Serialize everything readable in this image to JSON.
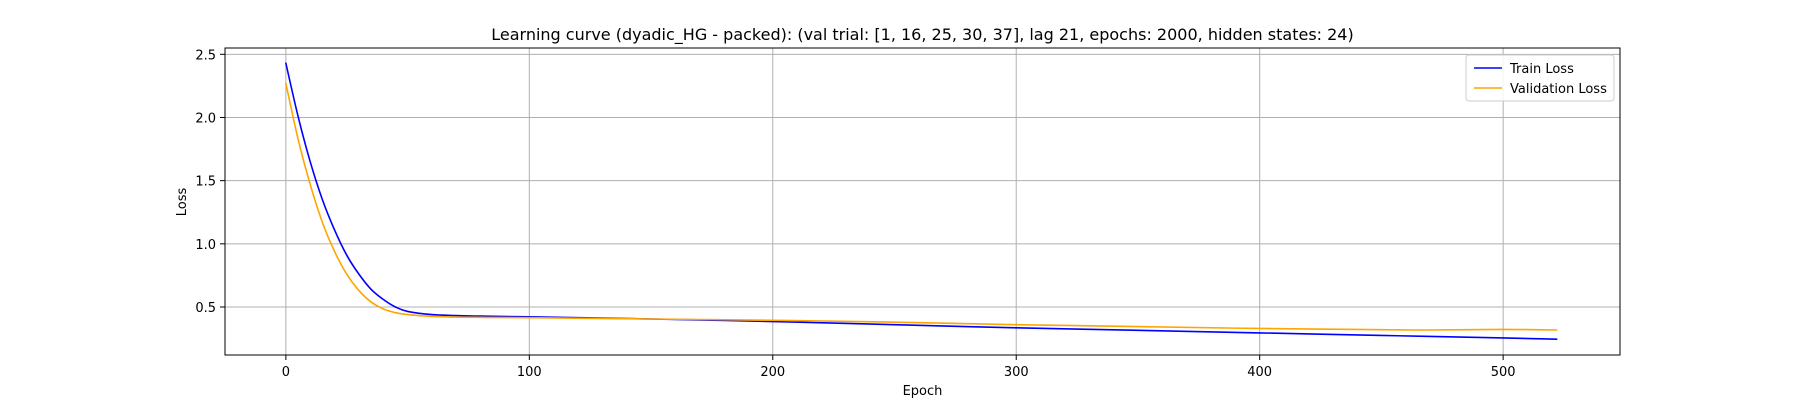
{
  "chart_data": {
    "type": "line",
    "title": "Learning curve (dyadic_HG - packed): (val trial: [1, 16, 25, 30, 37], lag 21, epochs: 2000, hidden states: 24)",
    "xlabel": "Epoch",
    "ylabel": "Loss",
    "xlim": [
      -25,
      548
    ],
    "ylim": [
      0.12,
      2.55
    ],
    "xticks": [
      0,
      100,
      200,
      300,
      400,
      500
    ],
    "yticks": [
      0.5,
      1.0,
      1.5,
      2.0,
      2.5
    ],
    "xtick_labels": [
      "0",
      "100",
      "200",
      "300",
      "400",
      "500"
    ],
    "ytick_labels": [
      "0.5",
      "1.0",
      "1.5",
      "2.0",
      "2.5"
    ],
    "grid": true,
    "legend_position": "upper right",
    "series": [
      {
        "name": "Train Loss",
        "color": "#0000ff",
        "x": [
          0,
          5,
          10,
          15,
          20,
          25,
          30,
          35,
          40,
          45,
          50,
          60,
          70,
          80,
          100,
          150,
          200,
          250,
          300,
          350,
          400,
          450,
          500,
          522
        ],
        "y": [
          2.43,
          2.01,
          1.65,
          1.35,
          1.11,
          0.91,
          0.76,
          0.64,
          0.56,
          0.5,
          0.465,
          0.44,
          0.432,
          0.428,
          0.422,
          0.405,
          0.385,
          0.36,
          0.335,
          0.315,
          0.295,
          0.275,
          0.255,
          0.245
        ]
      },
      {
        "name": "Validation Loss",
        "color": "#ffa500",
        "x": [
          0,
          5,
          10,
          15,
          20,
          25,
          30,
          35,
          40,
          45,
          50,
          60,
          70,
          80,
          100,
          150,
          200,
          250,
          300,
          350,
          400,
          450,
          470,
          500,
          522
        ],
        "y": [
          2.27,
          1.83,
          1.47,
          1.17,
          0.94,
          0.76,
          0.63,
          0.54,
          0.485,
          0.455,
          0.44,
          0.425,
          0.42,
          0.418,
          0.415,
          0.405,
          0.395,
          0.38,
          0.36,
          0.345,
          0.33,
          0.32,
          0.318,
          0.322,
          0.318
        ]
      }
    ]
  }
}
